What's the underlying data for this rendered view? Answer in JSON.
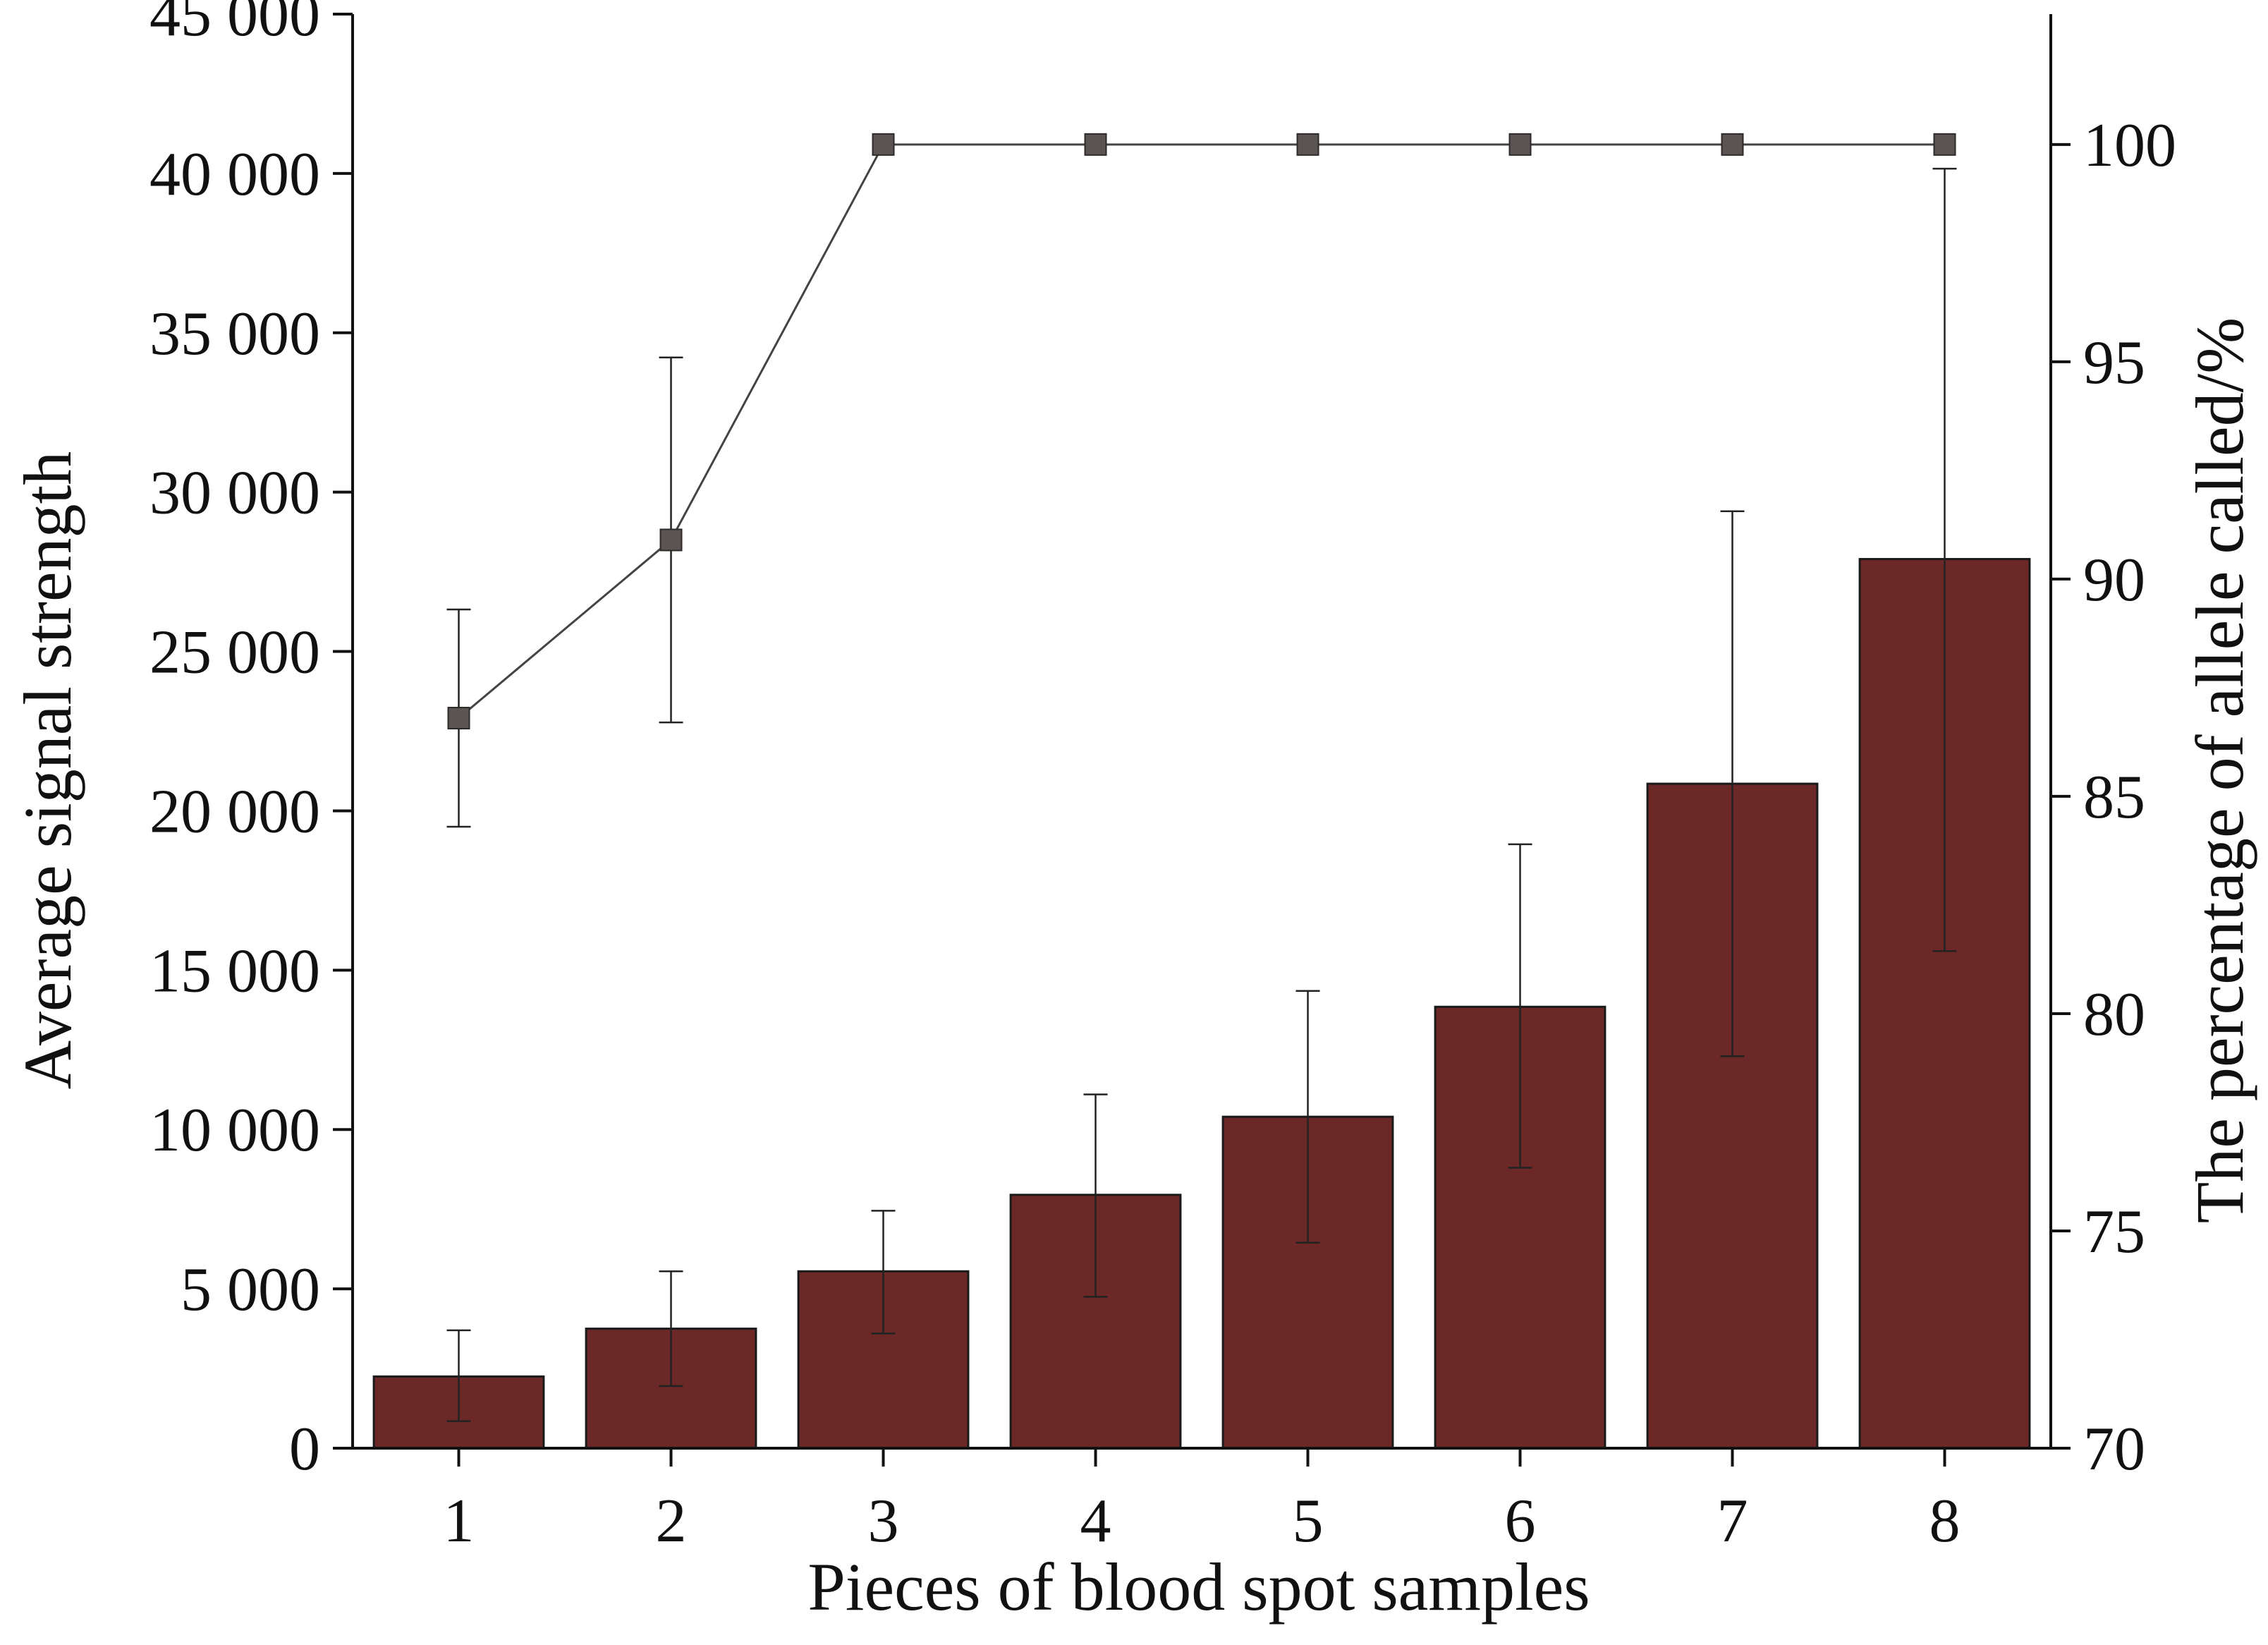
{
  "chart_data": {
    "type": "bar",
    "title": "",
    "xlabel": "Pieces of blood spot samples",
    "ylabel": "Average signal strength",
    "y2label": "The percentage of allele called/%",
    "categories": [
      "1",
      "2",
      "3",
      "4",
      "5",
      "6",
      "7",
      "8"
    ],
    "ylim": [
      0,
      45000
    ],
    "y_ticks": [
      0,
      5000,
      10000,
      15000,
      20000,
      25000,
      30000,
      35000,
      40000,
      45000
    ],
    "y_tick_labels": [
      "0",
      "5 000",
      "10 000",
      "15 000",
      "20 000",
      "25 000",
      "30 000",
      "35 000",
      "40 000",
      "45 000"
    ],
    "y2lim": [
      70,
      103
    ],
    "y2_ticks": [
      70,
      75,
      80,
      85,
      90,
      95,
      100
    ],
    "y2_tick_labels": [
      "70",
      "75",
      "80",
      "85",
      "90",
      "95",
      "100"
    ],
    "grid": false,
    "series": [
      {
        "type": "bar",
        "axis": "left",
        "values": [
          2250,
          3750,
          5550,
          7950,
          10400,
          13850,
          20850,
          27900
        ],
        "error": [
          [
            850,
            3700
          ],
          [
            1950,
            5550
          ],
          [
            3600,
            7450
          ],
          [
            4750,
            11100
          ],
          [
            6450,
            14350
          ],
          [
            8800,
            18950
          ],
          [
            12300,
            29400
          ],
          [
            15600,
            40150
          ]
        ]
      },
      {
        "type": "line",
        "axis": "right",
        "values": [
          86.8,
          90.9,
          100,
          100,
          100,
          100,
          100,
          100
        ],
        "error": [
          [
            84.3,
            89.3
          ],
          [
            86.7,
            95.1
          ],
          null,
          null,
          null,
          null,
          null,
          null
        ]
      }
    ],
    "colors": {
      "bar": "#6b2827",
      "bar_edge": "#1a1a1a",
      "line": "#444444",
      "marker": "#5a5453",
      "axis": "#111111"
    }
  }
}
